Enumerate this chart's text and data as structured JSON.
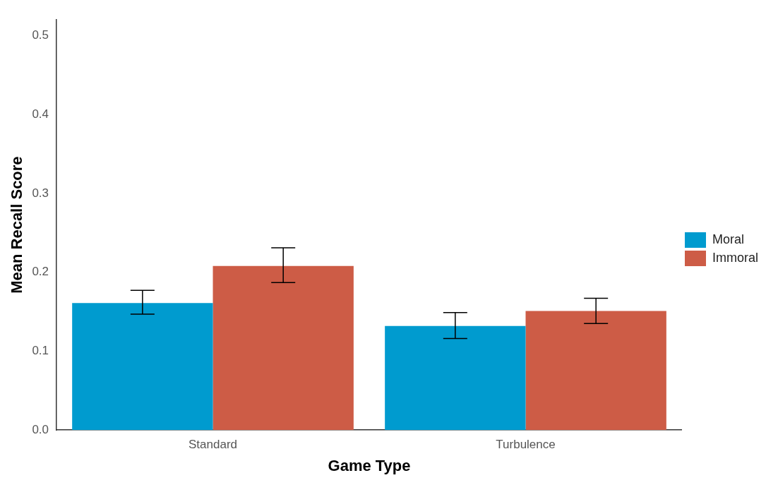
{
  "chart_data": {
    "type": "bar",
    "xlabel": "Game Type",
    "ylabel": "Mean Recall Score",
    "categories": [
      "Standard",
      "Turbulence"
    ],
    "series": [
      {
        "name": "Moral",
        "color": "#009bcf",
        "values": [
          0.161,
          0.132
        ],
        "errors": [
          [
            0.147,
            0.177
          ],
          [
            0.116,
            0.149
          ]
        ]
      },
      {
        "name": "Immoral",
        "color": "#cd5c46",
        "values": [
          0.208,
          0.151
        ],
        "errors": [
          [
            0.187,
            0.231
          ],
          [
            0.135,
            0.167
          ]
        ]
      }
    ],
    "ylim": [
      0,
      0.52
    ],
    "yticks": [
      {
        "value": 0,
        "label": "0.0"
      },
      {
        "value": 0.1,
        "label": "0.1"
      },
      {
        "value": 0.2,
        "label": "0.2"
      },
      {
        "value": 0.3,
        "label": "0.3"
      },
      {
        "value": 0.4,
        "label": "0.4"
      },
      {
        "value": 0.5,
        "label": "0.5"
      }
    ],
    "grid": false,
    "legend": "right"
  }
}
